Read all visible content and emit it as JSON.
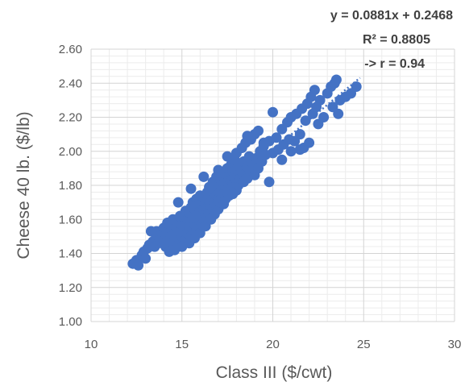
{
  "chart_data": {
    "type": "scatter",
    "title": "",
    "xlabel": "Class III ($/cwt)",
    "ylabel": "Cheese 40 lb. ($/lb)",
    "xlim": [
      10,
      30
    ],
    "ylim": [
      1.0,
      2.6
    ],
    "x_ticks": [
      "10",
      "15",
      "20",
      "25",
      "30"
    ],
    "y_ticks": [
      "1.00",
      "1.20",
      "1.40",
      "1.60",
      "1.80",
      "2.00",
      "2.20",
      "2.40",
      "2.60"
    ],
    "grid": {
      "major": true,
      "minor": true
    },
    "series_color": "#4472C4",
    "trendline": {
      "type": "linear",
      "slope": 0.0881,
      "intercept": 0.2468,
      "x_range": [
        12.3,
        24.8
      ],
      "style": "dotted"
    },
    "annotations": {
      "equation": "y = 0.0881x + 0.2468",
      "r_squared": "R² = 0.8805",
      "r": "-> r = 0.94"
    },
    "points": [
      [
        12.3,
        1.34
      ],
      [
        12.5,
        1.36
      ],
      [
        12.6,
        1.33
      ],
      [
        12.8,
        1.39
      ],
      [
        12.9,
        1.41
      ],
      [
        13.0,
        1.37
      ],
      [
        13.1,
        1.43
      ],
      [
        13.2,
        1.45
      ],
      [
        13.3,
        1.53
      ],
      [
        13.4,
        1.47
      ],
      [
        13.5,
        1.44
      ],
      [
        13.6,
        1.5
      ],
      [
        13.6,
        1.53
      ],
      [
        13.7,
        1.46
      ],
      [
        13.8,
        1.49
      ],
      [
        13.9,
        1.52
      ],
      [
        14.0,
        1.48
      ],
      [
        14.0,
        1.55
      ],
      [
        14.1,
        1.51
      ],
      [
        14.1,
        1.44
      ],
      [
        14.2,
        1.58
      ],
      [
        14.2,
        1.47
      ],
      [
        14.3,
        1.53
      ],
      [
        14.3,
        1.41
      ],
      [
        14.4,
        1.5
      ],
      [
        14.4,
        1.56
      ],
      [
        14.5,
        1.46
      ],
      [
        14.5,
        1.6
      ],
      [
        14.6,
        1.52
      ],
      [
        14.6,
        1.42
      ],
      [
        14.7,
        1.55
      ],
      [
        14.7,
        1.49
      ],
      [
        14.8,
        1.58
      ],
      [
        14.8,
        1.45
      ],
      [
        14.9,
        1.53
      ],
      [
        14.9,
        1.62
      ],
      [
        15.0,
        1.5
      ],
      [
        15.0,
        1.57
      ],
      [
        15.0,
        1.44
      ],
      [
        15.1,
        1.54
      ],
      [
        15.1,
        1.61
      ],
      [
        15.2,
        1.48
      ],
      [
        15.2,
        1.58
      ],
      [
        15.2,
        1.65
      ],
      [
        15.3,
        1.52
      ],
      [
        15.3,
        1.6
      ],
      [
        15.4,
        1.46
      ],
      [
        15.4,
        1.56
      ],
      [
        15.4,
        1.64
      ],
      [
        15.5,
        1.5
      ],
      [
        15.5,
        1.59
      ],
      [
        15.5,
        1.67
      ],
      [
        15.6,
        1.54
      ],
      [
        15.6,
        1.62
      ],
      [
        15.6,
        1.7
      ],
      [
        15.7,
        1.57
      ],
      [
        15.7,
        1.49
      ],
      [
        15.7,
        1.66
      ],
      [
        15.8,
        1.6
      ],
      [
        15.8,
        1.53
      ],
      [
        15.8,
        1.72
      ],
      [
        15.9,
        1.63
      ],
      [
        15.9,
        1.56
      ],
      [
        15.9,
        1.68
      ],
      [
        16.0,
        1.59
      ],
      [
        16.0,
        1.52
      ],
      [
        16.0,
        1.65
      ],
      [
        16.0,
        1.74
      ],
      [
        16.1,
        1.62
      ],
      [
        16.1,
        1.69
      ],
      [
        16.1,
        1.57
      ],
      [
        16.2,
        1.66
      ],
      [
        16.2,
        1.6
      ],
      [
        16.2,
        1.73
      ],
      [
        16.3,
        1.63
      ],
      [
        16.3,
        1.7
      ],
      [
        16.3,
        1.56
      ],
      [
        16.4,
        1.67
      ],
      [
        16.4,
        1.76
      ],
      [
        16.4,
        1.61
      ],
      [
        16.5,
        1.71
      ],
      [
        16.5,
        1.64
      ],
      [
        16.5,
        1.79
      ],
      [
        16.6,
        1.68
      ],
      [
        16.6,
        1.74
      ],
      [
        16.6,
        1.6
      ],
      [
        16.7,
        1.72
      ],
      [
        16.7,
        1.66
      ],
      [
        16.7,
        1.82
      ],
      [
        16.8,
        1.7
      ],
      [
        16.8,
        1.77
      ],
      [
        16.8,
        1.63
      ],
      [
        16.9,
        1.74
      ],
      [
        16.9,
        1.68
      ],
      [
        16.9,
        1.85
      ],
      [
        17.0,
        1.72
      ],
      [
        17.0,
        1.8
      ],
      [
        17.0,
        1.66
      ],
      [
        17.0,
        1.89
      ],
      [
        17.1,
        1.76
      ],
      [
        17.1,
        1.7
      ],
      [
        17.1,
        1.84
      ],
      [
        17.2,
        1.78
      ],
      [
        17.2,
        1.73
      ],
      [
        17.2,
        1.87
      ],
      [
        17.3,
        1.75
      ],
      [
        17.3,
        1.81
      ],
      [
        17.3,
        1.69
      ],
      [
        17.4,
        1.79
      ],
      [
        17.4,
        1.86
      ],
      [
        17.4,
        1.72
      ],
      [
        17.5,
        1.82
      ],
      [
        17.5,
        1.76
      ],
      [
        17.5,
        1.9
      ],
      [
        17.6,
        1.8
      ],
      [
        17.6,
        1.74
      ],
      [
        17.6,
        1.86
      ],
      [
        17.7,
        1.83
      ],
      [
        17.7,
        1.77
      ],
      [
        17.7,
        1.92
      ],
      [
        17.8,
        1.81
      ],
      [
        17.8,
        1.88
      ],
      [
        17.8,
        1.75
      ],
      [
        17.9,
        1.85
      ],
      [
        17.9,
        1.79
      ],
      [
        17.9,
        1.95
      ],
      [
        18.0,
        1.83
      ],
      [
        18.0,
        1.89
      ],
      [
        18.0,
        1.77
      ],
      [
        18.0,
        1.99
      ],
      [
        18.1,
        1.86
      ],
      [
        18.1,
        1.8
      ],
      [
        18.2,
        1.92
      ],
      [
        18.2,
        1.84
      ],
      [
        18.3,
        1.88
      ],
      [
        18.3,
        2.02
      ],
      [
        18.4,
        1.82
      ],
      [
        18.4,
        1.94
      ],
      [
        18.5,
        1.87
      ],
      [
        18.5,
        2.05
      ],
      [
        18.6,
        1.91
      ],
      [
        18.6,
        1.84
      ],
      [
        18.7,
        1.97
      ],
      [
        18.8,
        1.89
      ],
      [
        18.8,
        2.07
      ],
      [
        18.9,
        1.93
      ],
      [
        19.0,
        1.86
      ],
      [
        19.0,
        2.1
      ],
      [
        19.1,
        1.96
      ],
      [
        19.2,
        2.12
      ],
      [
        19.2,
        1.9
      ],
      [
        19.3,
        2.0
      ],
      [
        19.4,
        1.94
      ],
      [
        19.5,
        2.03
      ],
      [
        19.6,
        1.98
      ],
      [
        19.8,
        2.06
      ],
      [
        20.0,
        1.99
      ],
      [
        20.2,
        2.08
      ],
      [
        20.3,
        2.01
      ],
      [
        20.5,
        2.13
      ],
      [
        20.6,
        2.04
      ],
      [
        20.8,
        2.17
      ],
      [
        20.9,
        2.07
      ],
      [
        21.0,
        2.2
      ],
      [
        21.2,
        2.06
      ],
      [
        21.3,
        2.22
      ],
      [
        21.5,
        2.1
      ],
      [
        21.6,
        2.25
      ],
      [
        21.7,
        2.02
      ],
      [
        21.8,
        2.18
      ],
      [
        21.9,
        2.28
      ],
      [
        22.0,
        2.05
      ],
      [
        22.1,
        2.32
      ],
      [
        22.2,
        2.22
      ],
      [
        22.3,
        2.36
      ],
      [
        22.4,
        2.26
      ],
      [
        22.6,
        2.3
      ],
      [
        22.8,
        2.2
      ],
      [
        23.0,
        2.34
      ],
      [
        23.2,
        2.38
      ],
      [
        23.3,
        2.26
      ],
      [
        23.4,
        2.4
      ],
      [
        23.5,
        2.42
      ],
      [
        23.6,
        2.22
      ],
      [
        23.7,
        2.3
      ],
      [
        24.0,
        2.32
      ],
      [
        24.3,
        2.34
      ],
      [
        24.6,
        2.38
      ],
      [
        19.8,
        1.82
      ],
      [
        20.5,
        1.95
      ],
      [
        21.5,
        2.01
      ],
      [
        22.5,
        2.16
      ],
      [
        16.2,
        1.85
      ],
      [
        17.5,
        1.97
      ],
      [
        18.6,
        2.09
      ],
      [
        15.5,
        1.78
      ],
      [
        14.8,
        1.7
      ],
      [
        19.5,
        2.05
      ],
      [
        20.0,
        2.23
      ],
      [
        21.0,
        2.0
      ]
    ]
  }
}
